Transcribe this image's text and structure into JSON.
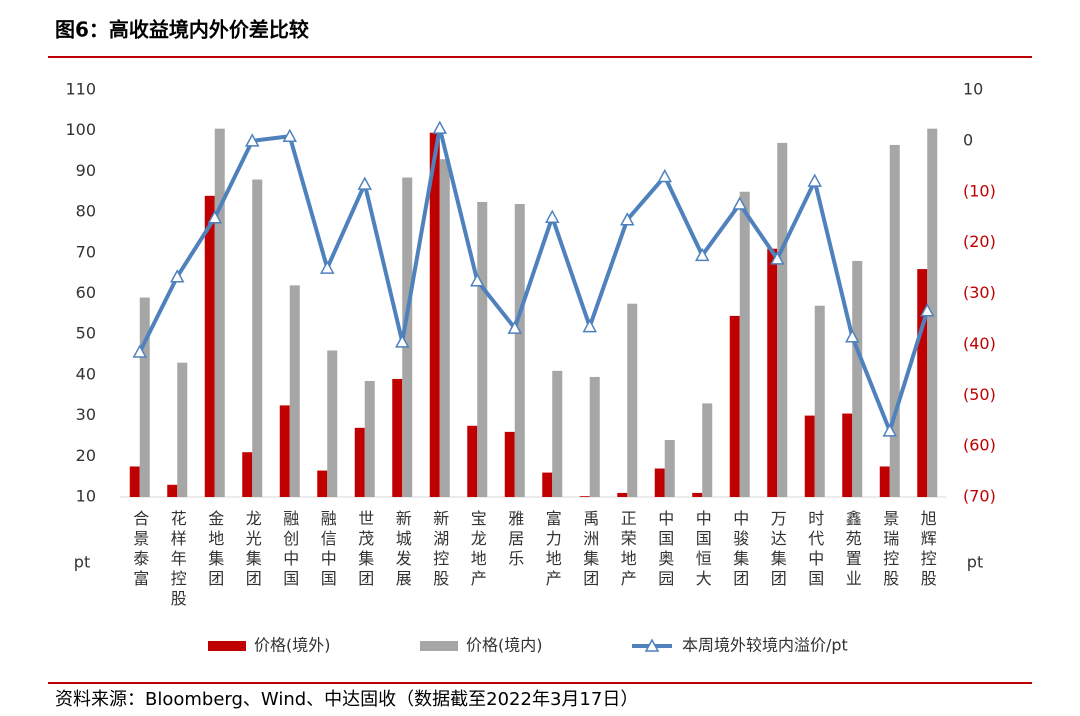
{
  "chart_data": {
    "type": "bar-line",
    "title": "图6：高收益境内外价差比较",
    "source": "资料来源：Bloomberg、Wind、中达固收（数据截至2022年3月17日）",
    "y_label": "pt",
    "y2_label": "pt",
    "categories": [
      "合景泰富",
      "花样年控股",
      "金地集团",
      "龙光集团",
      "融创中国",
      "融信中国",
      "世茂集团",
      "新城发展",
      "新湖控股",
      "宝龙地产",
      "雅居乐",
      "富力地产",
      "禹洲集团",
      "正荣地产",
      "中国奥园",
      "中国恒大",
      "中骏集团",
      "万达集团",
      "时代中国",
      "鑫苑置业",
      "景瑞控股",
      "旭辉控股"
    ],
    "series": [
      {
        "name": "价格(境外)",
        "type": "bar",
        "color": "#c00000",
        "values": [
          17.5,
          13,
          84,
          21,
          32.5,
          16.5,
          27,
          39,
          99.5,
          27.5,
          26,
          16,
          10.2,
          11,
          17,
          11,
          54.5,
          71,
          30,
          30.5,
          17.5,
          66
        ]
      },
      {
        "name": "价格(境内)",
        "type": "bar",
        "color": "#a6a6a6",
        "values": [
          59,
          43,
          100.5,
          88,
          62,
          46,
          38.5,
          88.5,
          93,
          82.5,
          82,
          41,
          39.5,
          57.5,
          24,
          33,
          85,
          97,
          57,
          68,
          96.5,
          100.5
        ]
      },
      {
        "name": "本周境外较境内溢价/pt",
        "type": "line",
        "axis": "y2",
        "color": "#4f81bd",
        "values": [
          -41.5,
          -26.7,
          -15.1,
          0,
          0.9,
          -25,
          -8.5,
          -39.5,
          2.5,
          -27.5,
          -36.8,
          -15,
          -36.5,
          -15.5,
          -7,
          -22.5,
          -12.4,
          -23.2,
          -7.9,
          -38.5,
          -57,
          -33.4
        ]
      }
    ],
    "ylim": [
      10,
      110
    ],
    "yticks": [
      10,
      20,
      30,
      40,
      50,
      60,
      70,
      80,
      90,
      100,
      110
    ],
    "y2lim": [
      -70,
      10
    ],
    "y2ticks": [
      {
        "value": -70,
        "label": "(70)"
      },
      {
        "value": -60,
        "label": "(60)"
      },
      {
        "value": -50,
        "label": "(50)"
      },
      {
        "value": -40,
        "label": "(40)"
      },
      {
        "value": -30,
        "label": "(30)"
      },
      {
        "value": -20,
        "label": "(20)"
      },
      {
        "value": -10,
        "label": "(10)"
      },
      0,
      10
    ],
    "y2_negative_color": "#c00000",
    "grid": false
  }
}
